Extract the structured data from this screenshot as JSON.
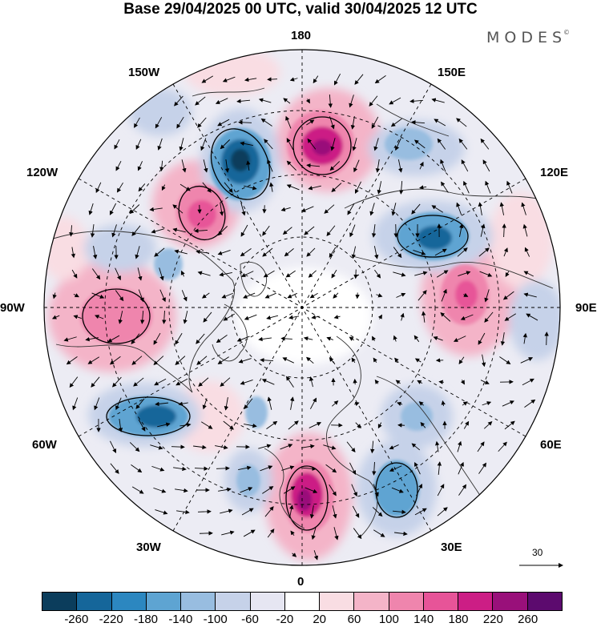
{
  "title": "Base 29/04/2025 00 UTC, valid 30/04/2025 12 UTC",
  "brand": "MODES",
  "brand_mark": "©",
  "longitude_labels": {
    "top": "180",
    "bottom": "0",
    "left": "90W",
    "right": "90E",
    "upper_left": "150W",
    "upper_right": "150E",
    "mid_upper_left": "120W",
    "mid_upper_right": "120E",
    "mid_lower_left": "60W",
    "mid_lower_right": "60E",
    "lower_left": "30W",
    "lower_right": "30E"
  },
  "reference_vector_label": "30",
  "colorbar": {
    "colors": [
      "#0b3d5c",
      "#15669a",
      "#2c87c0",
      "#5ea4d2",
      "#98bde0",
      "#c6d2e9",
      "#e6e6f2",
      "#ffffff",
      "#f9dde3",
      "#f4b4c8",
      "#ef85ad",
      "#e75498",
      "#cc1e85",
      "#99107a",
      "#5c0a6e"
    ],
    "ticks": [
      "-260",
      "-220",
      "-180",
      "-140",
      "-100",
      "-60",
      "-20",
      "20",
      "60",
      "100",
      "140",
      "180",
      "220",
      "260"
    ]
  },
  "anomaly_centers": [
    {
      "name": "negative-center-pacific",
      "color": "#15669a"
    },
    {
      "name": "positive-center-bering",
      "color": "#cc1e85"
    },
    {
      "name": "positive-center-alaska",
      "color": "#e75498"
    },
    {
      "name": "negative-center-siberia",
      "color": "#2c87c0"
    },
    {
      "name": "positive-center-central-asia",
      "color": "#e75498"
    },
    {
      "name": "positive-center-north-america",
      "color": "#ef85ad"
    },
    {
      "name": "negative-center-atlantic",
      "color": "#2c87c0"
    },
    {
      "name": "positive-center-europe",
      "color": "#cc1e85"
    },
    {
      "name": "negative-center-eastern-europe",
      "color": "#5ea4d2"
    }
  ]
}
